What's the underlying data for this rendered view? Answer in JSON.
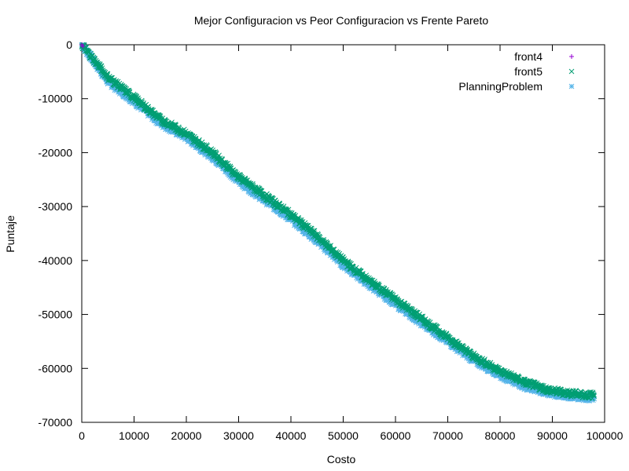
{
  "chart_data": {
    "type": "scatter",
    "title": "Mejor Configuracion vs Peor Configuracion vs Frente Pareto",
    "xlabel": "Costo",
    "ylabel": "Puntaje",
    "xlim": [
      0,
      100000
    ],
    "ylim": [
      -70000,
      0
    ],
    "xticks": [
      0,
      10000,
      20000,
      30000,
      40000,
      50000,
      60000,
      70000,
      80000,
      90000,
      100000
    ],
    "yticks": [
      0,
      -10000,
      -20000,
      -30000,
      -40000,
      -50000,
      -60000,
      -70000
    ],
    "grid": false,
    "legend_position": "top-right",
    "series": [
      {
        "name": "front4",
        "marker": "+",
        "color": "#9400d3",
        "x": [
          0,
          200
        ],
        "y": [
          0,
          -300
        ]
      },
      {
        "name": "front5",
        "marker": "x",
        "color": "#009e73",
        "x": [
          0,
          5000,
          10000,
          15000,
          20000,
          25000,
          30000,
          35000,
          40000,
          45000,
          50000,
          55000,
          60000,
          65000,
          70000,
          75000,
          80000,
          85000,
          90000,
          95000,
          98000
        ],
        "y": [
          0,
          -6000,
          -9800,
          -13800,
          -16500,
          -20000,
          -24500,
          -28000,
          -31500,
          -35500,
          -40000,
          -43800,
          -47200,
          -50800,
          -54300,
          -57800,
          -60500,
          -62700,
          -64200,
          -64800,
          -65000
        ]
      },
      {
        "name": "PlanningProblem",
        "marker": "*",
        "color": "#56b4e9",
        "x": [
          0,
          5000,
          10000,
          15000,
          20000,
          25000,
          30000,
          35000,
          40000,
          45000,
          50000,
          55000,
          60000,
          65000,
          70000,
          75000,
          80000,
          85000,
          90000,
          95000,
          98000
        ],
        "y": [
          0,
          -6800,
          -10500,
          -14500,
          -17200,
          -20800,
          -25300,
          -28800,
          -32300,
          -36300,
          -40800,
          -44500,
          -48000,
          -51600,
          -55000,
          -58500,
          -61200,
          -63400,
          -64800,
          -65200,
          -65500
        ]
      }
    ]
  }
}
